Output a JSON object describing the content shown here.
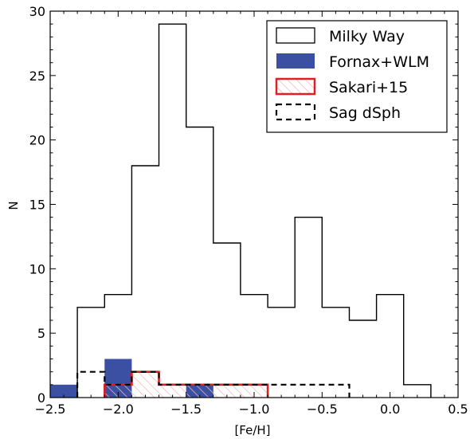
{
  "chart_data": {
    "type": "histogram",
    "xlabel": "[Fe/H]",
    "ylabel": "N",
    "xlim": [
      -2.5,
      0.5
    ],
    "ylim": [
      0,
      30
    ],
    "xticks": [
      -2.5,
      -2.0,
      -1.5,
      -1.0,
      -0.5,
      0.0,
      0.5
    ],
    "xtick_labels": [
      "−2.5",
      "−2.0",
      "−1.5",
      "−1.0",
      "−0.5",
      "0.0",
      "0.5"
    ],
    "yticks": [
      0,
      5,
      10,
      15,
      20,
      25,
      30
    ],
    "ytick_labels": [
      "0",
      "5",
      "10",
      "15",
      "20",
      "25",
      "30"
    ],
    "legend_position": "top-right",
    "series": [
      {
        "name": "Milky Way",
        "style": "step-outline",
        "color": "#000000",
        "bin_edges": [
          -2.3,
          -2.1,
          -1.9,
          -1.7,
          -1.5,
          -1.3,
          -1.1,
          -0.9,
          -0.7,
          -0.5,
          -0.3,
          -0.1,
          0.1,
          0.3
        ],
        "counts": [
          7,
          8,
          18,
          29,
          21,
          12,
          8,
          7,
          14,
          7,
          6,
          8,
          1
        ]
      },
      {
        "name": "Fornax+WLM",
        "style": "filled",
        "color": "#3b4fa3",
        "bin_edges": [
          -2.5,
          -2.3,
          -2.1,
          -1.9,
          -1.7,
          -1.5,
          -1.3
        ],
        "counts": [
          1,
          0,
          3,
          0,
          0,
          1
        ]
      },
      {
        "name": "Sakari+15",
        "style": "hatched-outline",
        "color": "#e02020",
        "bin_edges": [
          -2.1,
          -1.9,
          -1.7,
          -1.5,
          -1.3,
          -1.1,
          -0.9
        ],
        "counts": [
          1,
          2,
          1,
          1,
          1,
          1
        ]
      },
      {
        "name": "Sag dSph",
        "style": "dashed-outline",
        "color": "#000000",
        "bin_edges": [
          -2.3,
          -2.1,
          -1.9,
          -1.7,
          -1.5,
          -1.3,
          -1.1,
          -0.9,
          -0.7,
          -0.5,
          -0.3
        ],
        "counts": [
          2,
          1,
          2,
          1,
          1,
          1,
          1,
          1,
          1,
          1
        ]
      }
    ]
  }
}
